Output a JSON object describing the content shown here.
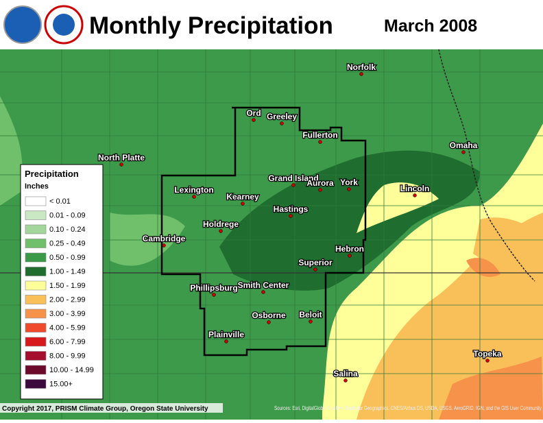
{
  "header": {
    "title": "Monthly Precipitation",
    "date": "March 2008"
  },
  "cities": [
    {
      "name": "Norfolk"
    },
    {
      "name": "Ord"
    },
    {
      "name": "Greeley"
    },
    {
      "name": "Fullerton"
    },
    {
      "name": "Omaha"
    },
    {
      "name": "North Platte"
    },
    {
      "name": "Lexington"
    },
    {
      "name": "Grand Island"
    },
    {
      "name": "Aurora"
    },
    {
      "name": "York"
    },
    {
      "name": "Lincoln"
    },
    {
      "name": "Kearney"
    },
    {
      "name": "Hastings"
    },
    {
      "name": "Holdrege"
    },
    {
      "name": "Cambridge"
    },
    {
      "name": "Hebron"
    },
    {
      "name": "Superior"
    },
    {
      "name": "Phillipsburg"
    },
    {
      "name": "Smith Center"
    },
    {
      "name": "Beloit"
    },
    {
      "name": "Osborne"
    },
    {
      "name": "Plainville"
    },
    {
      "name": "Topeka"
    },
    {
      "name": "Salina"
    }
  ],
  "legend": {
    "title": "Precipitation",
    "units": "Inches",
    "items": [
      {
        "label": "< 0.01",
        "color": "#ffffff"
      },
      {
        "label": "0.01 - 0.09",
        "color": "#c9e8c3"
      },
      {
        "label": "0.10 - 0.24",
        "color": "#a3d69a"
      },
      {
        "label": "0.25 - 0.49",
        "color": "#6fbf6b"
      },
      {
        "label": "0.50 - 0.99",
        "color": "#3a9a48"
      },
      {
        "label": "1.00 - 1.49",
        "color": "#1f6e30"
      },
      {
        "label": "1.50 - 1.99",
        "color": "#ffff99"
      },
      {
        "label": "2.00 - 2.99",
        "color": "#f9c05a"
      },
      {
        "label": "3.00 - 3.99",
        "color": "#f7924a"
      },
      {
        "label": "4.00 - 5.99",
        "color": "#ef4a2c"
      },
      {
        "label": "6.00 - 7.99",
        "color": "#d7191c"
      },
      {
        "label": "8.00 - 9.99",
        "color": "#a50f2d"
      },
      {
        "label": "10.00 - 14.99",
        "color": "#6b0a2a"
      },
      {
        "label": "15.00+",
        "color": "#3d0a3d"
      }
    ]
  },
  "footer": {
    "copyright": "Copyright 2017, PRISM Climate Group, Oregon State University",
    "sources": "Sources: Esri, DigitalGlobe, GeoEye, Earthstar Geographics, CNES/Airbus DS, USDA, USGS, AeroGRID, IGN, and the GIS User Community"
  }
}
